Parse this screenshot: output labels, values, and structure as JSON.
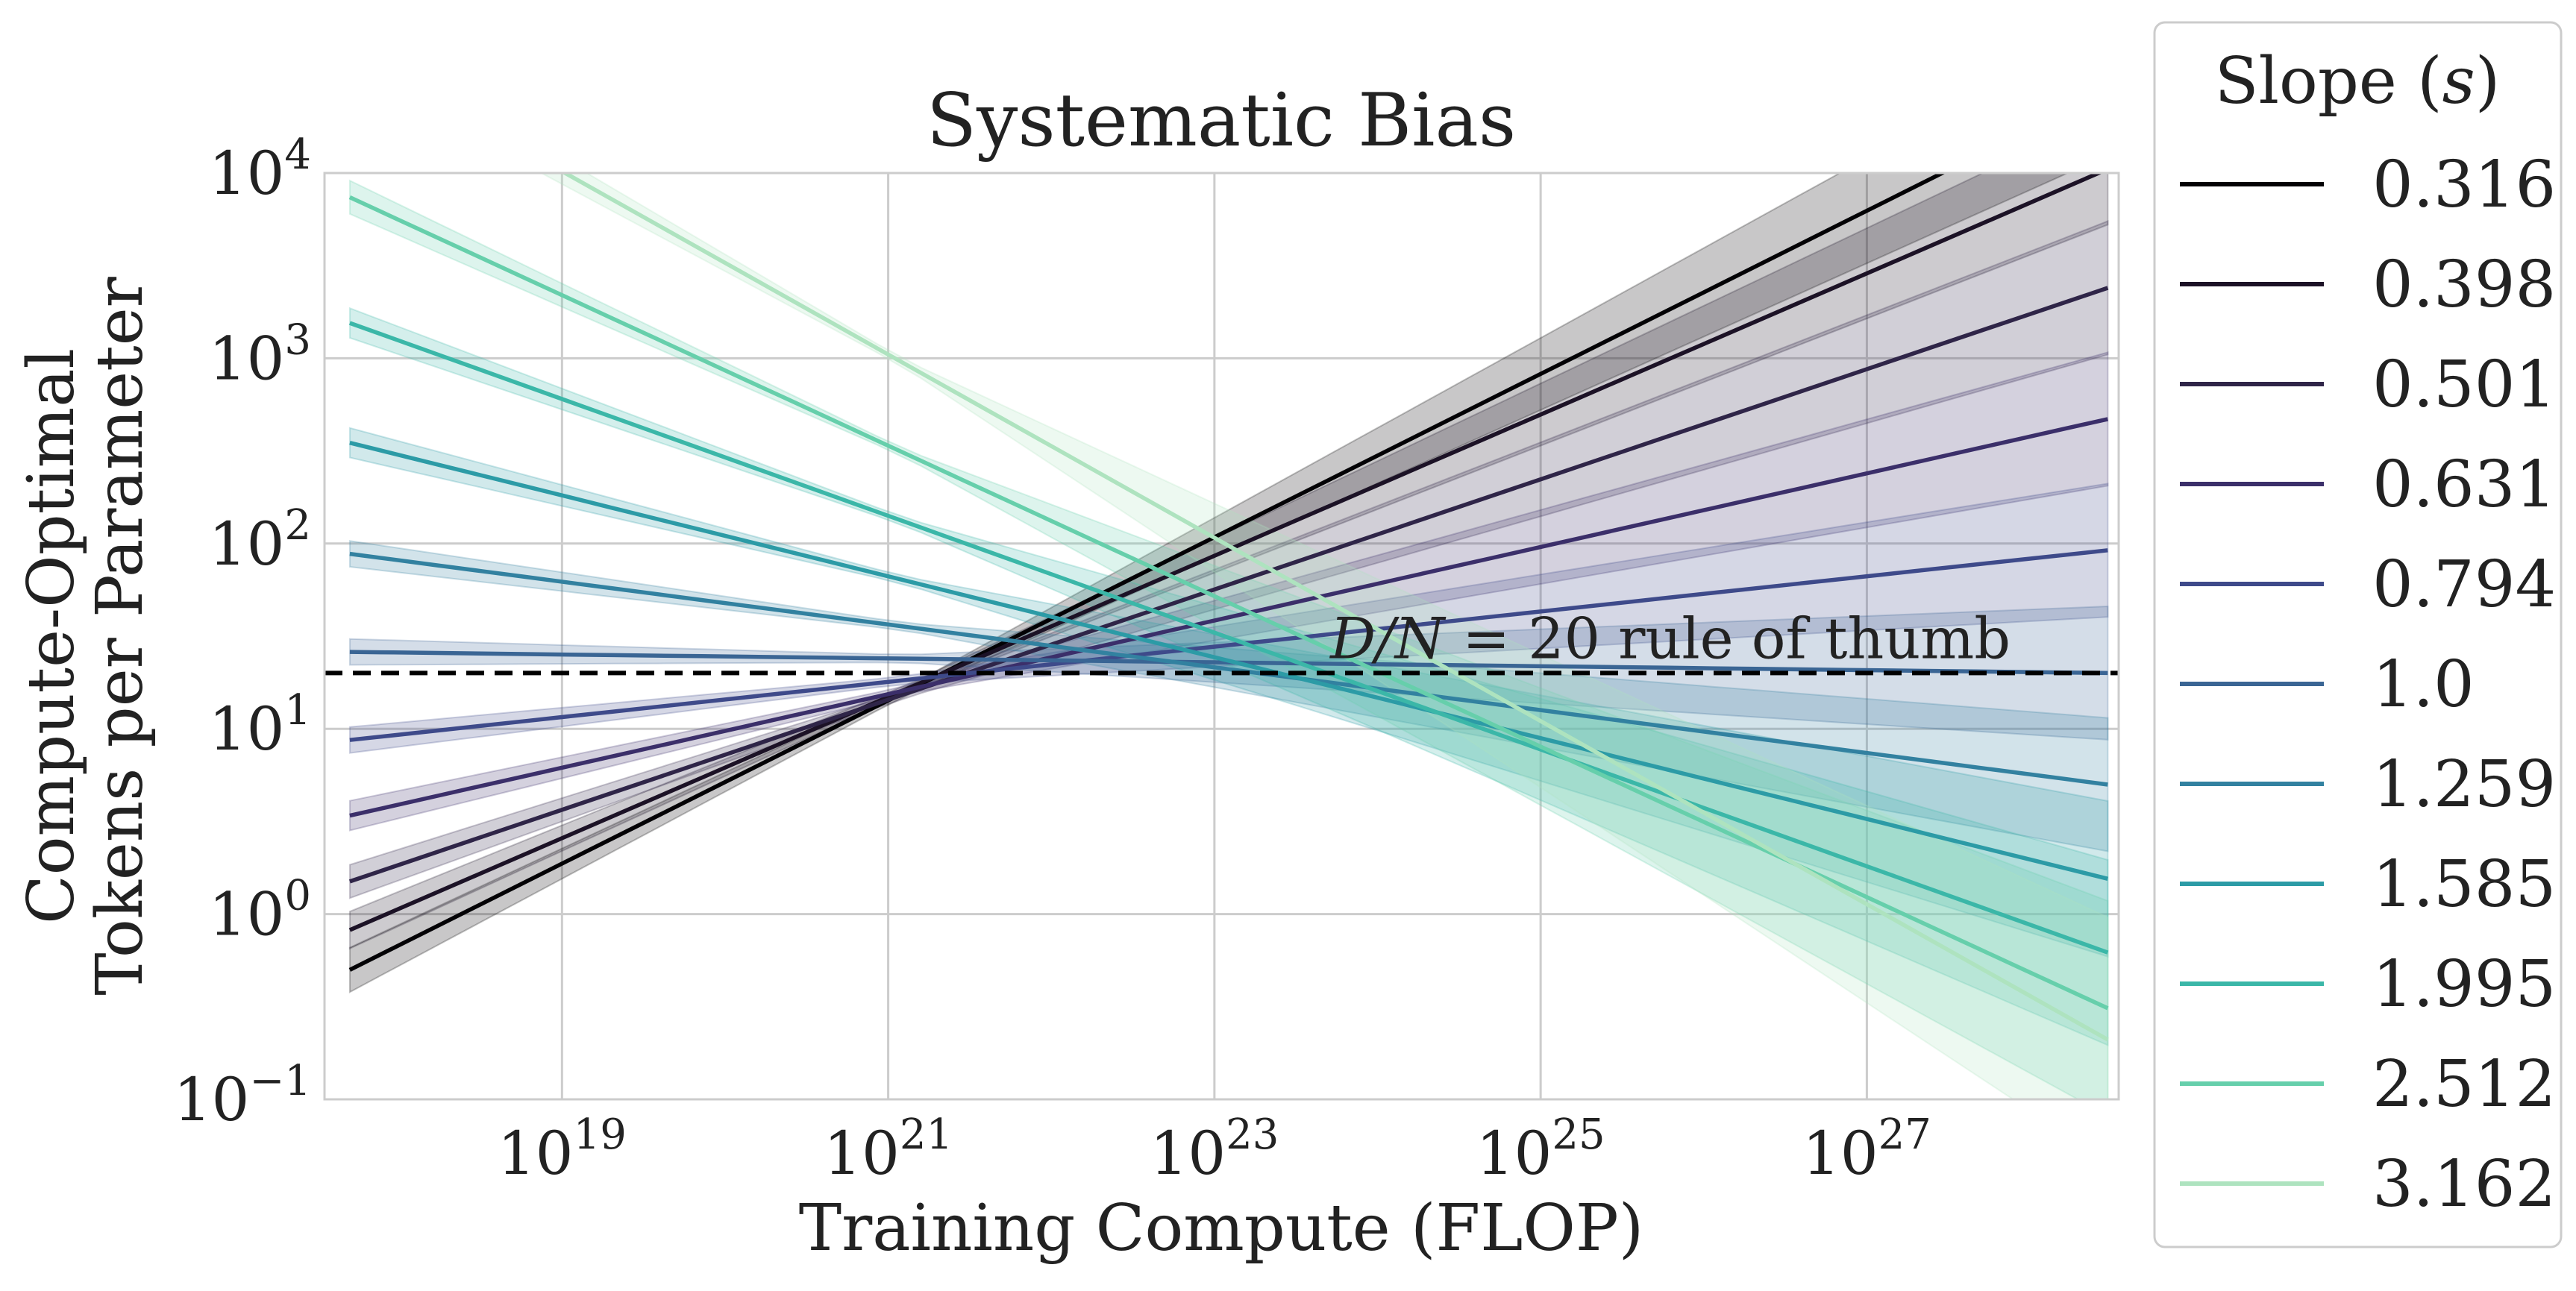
{
  "chart_data": {
    "type": "line",
    "title": "Systematic Bias",
    "xlabel": "Training Compute (FLOP)",
    "ylabel_lines": [
      "Compute-Optimal",
      "Tokens per Parameter"
    ],
    "x_scale": "log",
    "y_scale": "log",
    "xlim": [
      3.5e+17,
      3.5e+28
    ],
    "ylim": [
      0.1,
      10000
    ],
    "x_ticks": [
      {
        "value": 1e+19,
        "base": "10",
        "exp": "19"
      },
      {
        "value": 1e+21,
        "base": "10",
        "exp": "21"
      },
      {
        "value": 1e+23,
        "base": "10",
        "exp": "23"
      },
      {
        "value": 1e+25,
        "base": "10",
        "exp": "25"
      },
      {
        "value": 1e+27,
        "base": "10",
        "exp": "27"
      }
    ],
    "y_ticks": [
      {
        "value": 0.1,
        "base": "10",
        "exp": "−1"
      },
      {
        "value": 1,
        "base": "10",
        "exp": "0"
      },
      {
        "value": 10,
        "base": "10",
        "exp": "1"
      },
      {
        "value": 100,
        "base": "10",
        "exp": "2"
      },
      {
        "value": 1000,
        "base": "10",
        "exp": "3"
      },
      {
        "value": 10000,
        "base": "10",
        "exp": "4"
      }
    ],
    "grid": true,
    "legend": {
      "title_prefix": "Slope (",
      "title_var": "s",
      "title_suffix": ")",
      "placement": "outside-right"
    },
    "reference_line": {
      "y": 20,
      "style": "dashed",
      "color": "#000000",
      "label_math": "D/N",
      "label_rest": " = 20 rule of thumb"
    },
    "x_range": [
      5e+17,
      3e+28
    ],
    "pivot": {
      "x": 1.25e+21,
      "y": 18
    },
    "series": [
      {
        "name": "0.316",
        "color": "#030205",
        "y_start": 0.5,
        "y_end": 28000,
        "band": 0.12,
        "band_end": 0.35
      },
      {
        "name": "0.398",
        "color": "#1c1226",
        "y_start": 0.82,
        "y_end": 10500,
        "band": 0.1,
        "band_end": 0.3
      },
      {
        "name": "0.501",
        "color": "#2f2548",
        "y_start": 1.5,
        "y_end": 2400,
        "band": 0.09,
        "band_end": 0.36
      },
      {
        "name": "0.631",
        "color": "#3b2f6a",
        "y_start": 3.4,
        "y_end": 470,
        "band": 0.08,
        "band_end": 0.36
      },
      {
        "name": "0.794",
        "color": "#3e4a8a",
        "y_start": 8.7,
        "y_end": 92,
        "band": 0.07,
        "band_end": 0.36
      },
      {
        "name": "1.0",
        "color": "#3a6594",
        "y_start": 26,
        "y_end": 20,
        "band": 0.07,
        "band_end": 0.36
      },
      {
        "name": "1.259",
        "color": "#3281a0",
        "y_start": 88,
        "y_end": 5,
        "band": 0.07,
        "band_end": 0.36
      },
      {
        "name": "1.585",
        "color": "#2c9ba6",
        "y_start": 350,
        "y_end": 1.55,
        "band": 0.08,
        "band_end": 0.42
      },
      {
        "name": "1.995",
        "color": "#3bb7a8",
        "y_start": 1550,
        "y_end": 0.62,
        "band": 0.08,
        "band_end": 0.5
      },
      {
        "name": "2.512",
        "color": "#66cfab",
        "y_start": 7400,
        "y_end": 0.31,
        "band": 0.09,
        "band_end": 0.58
      },
      {
        "name": "3.162",
        "color": "#aee3bf",
        "y_start": 45000,
        "y_end": 0.21,
        "band": 0.1,
        "band_end": 0.66
      }
    ]
  }
}
